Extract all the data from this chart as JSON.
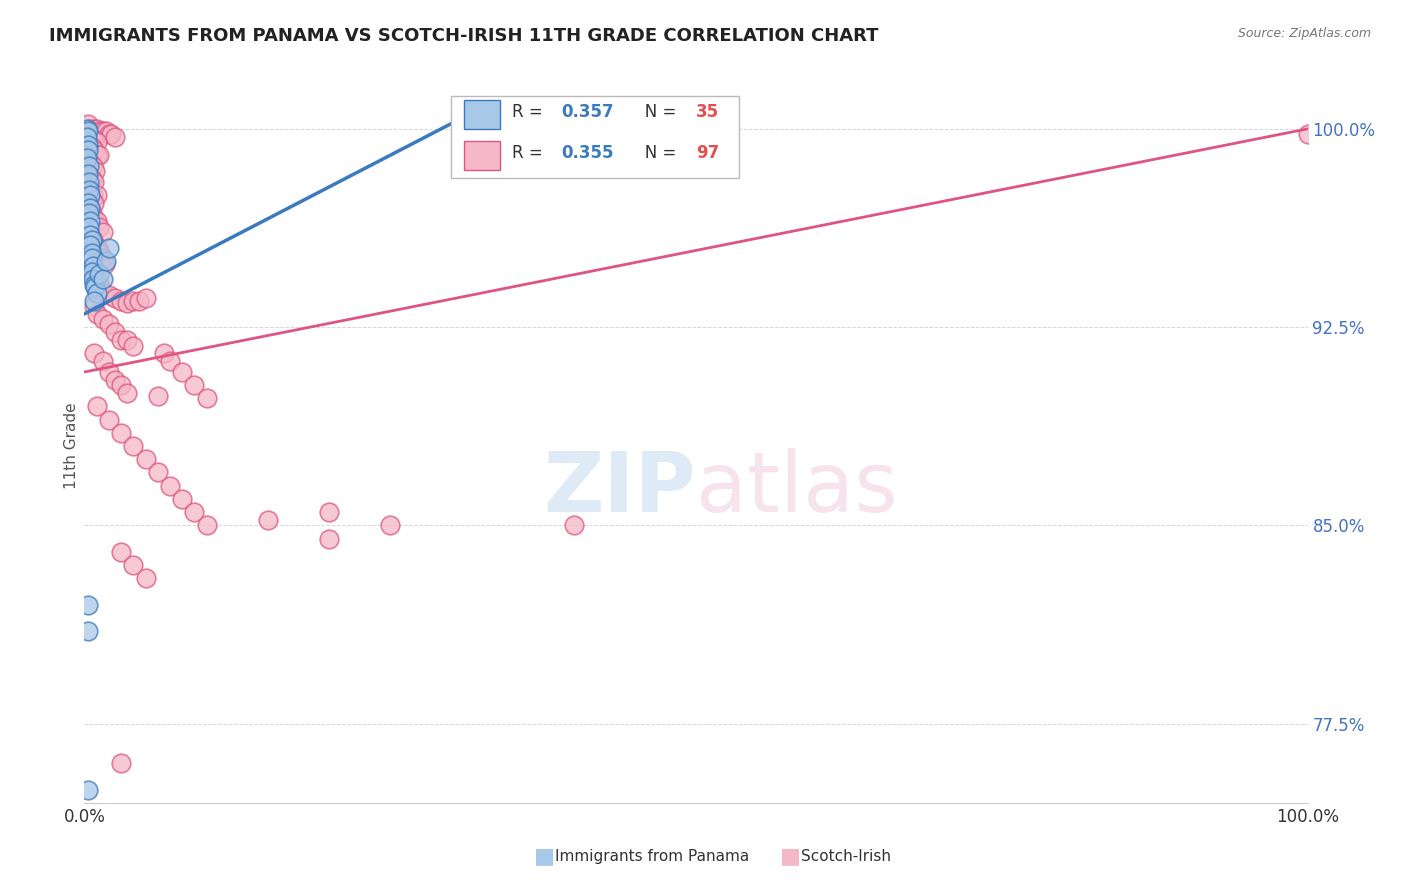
{
  "title": "IMMIGRANTS FROM PANAMA VS SCOTCH-IRISH 11TH GRADE CORRELATION CHART",
  "source": "Source: ZipAtlas.com",
  "ylabel": "11th Grade",
  "yticks": [
    0.775,
    0.85,
    0.925,
    1.0
  ],
  "ytick_labels": [
    "77.5%",
    "85.0%",
    "92.5%",
    "100.0%"
  ],
  "blue_color": "#a8c8e8",
  "pink_color": "#f4b8c8",
  "blue_line_color": "#3a7abf",
  "pink_line_color": "#e05580",
  "xmin": 0.0,
  "xmax": 1.0,
  "ymin": 0.745,
  "ymax": 1.015,
  "blue_scatter": [
    [
      0.002,
      1.0
    ],
    [
      0.003,
      0.999
    ],
    [
      0.002,
      0.997
    ],
    [
      0.003,
      0.994
    ],
    [
      0.003,
      0.992
    ],
    [
      0.002,
      0.989
    ],
    [
      0.004,
      0.986
    ],
    [
      0.003,
      0.983
    ],
    [
      0.004,
      0.98
    ],
    [
      0.004,
      0.977
    ],
    [
      0.005,
      0.975
    ],
    [
      0.003,
      0.972
    ],
    [
      0.005,
      0.97
    ],
    [
      0.004,
      0.968
    ],
    [
      0.005,
      0.965
    ],
    [
      0.004,
      0.963
    ],
    [
      0.005,
      0.96
    ],
    [
      0.006,
      0.958
    ],
    [
      0.005,
      0.956
    ],
    [
      0.006,
      0.953
    ],
    [
      0.006,
      0.951
    ],
    [
      0.007,
      0.948
    ],
    [
      0.006,
      0.946
    ],
    [
      0.007,
      0.943
    ],
    [
      0.008,
      0.941
    ],
    [
      0.009,
      0.94
    ],
    [
      0.01,
      0.938
    ],
    [
      0.008,
      0.935
    ],
    [
      0.012,
      0.945
    ],
    [
      0.015,
      0.943
    ],
    [
      0.018,
      0.95
    ],
    [
      0.02,
      0.955
    ],
    [
      0.003,
      0.82
    ],
    [
      0.003,
      0.81
    ],
    [
      0.003,
      0.75
    ]
  ],
  "pink_scatter": [
    [
      0.003,
      1.002
    ],
    [
      0.005,
      1.0
    ],
    [
      0.008,
      1.0
    ],
    [
      0.01,
      1.0
    ],
    [
      0.012,
      0.999
    ],
    [
      0.015,
      0.999
    ],
    [
      0.018,
      0.999
    ],
    [
      0.02,
      0.998
    ],
    [
      0.022,
      0.998
    ],
    [
      0.025,
      0.997
    ],
    [
      0.006,
      0.996
    ],
    [
      0.008,
      0.996
    ],
    [
      0.01,
      0.995
    ],
    [
      0.004,
      0.994
    ],
    [
      0.006,
      0.993
    ],
    [
      0.008,
      0.992
    ],
    [
      0.01,
      0.99
    ],
    [
      0.012,
      0.99
    ],
    [
      0.003,
      0.988
    ],
    [
      0.005,
      0.987
    ],
    [
      0.007,
      0.986
    ],
    [
      0.009,
      0.984
    ],
    [
      0.004,
      0.982
    ],
    [
      0.006,
      0.981
    ],
    [
      0.008,
      0.98
    ],
    [
      0.003,
      0.978
    ],
    [
      0.005,
      0.976
    ],
    [
      0.007,
      0.975
    ],
    [
      0.01,
      0.975
    ],
    [
      0.006,
      0.973
    ],
    [
      0.008,
      0.972
    ],
    [
      0.004,
      0.97
    ],
    [
      0.006,
      0.968
    ],
    [
      0.008,
      0.966
    ],
    [
      0.01,
      0.965
    ],
    [
      0.012,
      0.963
    ],
    [
      0.015,
      0.961
    ],
    [
      0.005,
      0.96
    ],
    [
      0.007,
      0.958
    ],
    [
      0.009,
      0.956
    ],
    [
      0.011,
      0.955
    ],
    [
      0.013,
      0.953
    ],
    [
      0.015,
      0.951
    ],
    [
      0.017,
      0.949
    ],
    [
      0.005,
      0.948
    ],
    [
      0.007,
      0.946
    ],
    [
      0.009,
      0.944
    ],
    [
      0.011,
      0.942
    ],
    [
      0.013,
      0.94
    ],
    [
      0.015,
      0.938
    ],
    [
      0.02,
      0.937
    ],
    [
      0.025,
      0.936
    ],
    [
      0.03,
      0.935
    ],
    [
      0.035,
      0.934
    ],
    [
      0.04,
      0.935
    ],
    [
      0.045,
      0.935
    ],
    [
      0.05,
      0.936
    ],
    [
      0.008,
      0.933
    ],
    [
      0.01,
      0.93
    ],
    [
      0.015,
      0.928
    ],
    [
      0.02,
      0.926
    ],
    [
      0.025,
      0.923
    ],
    [
      0.03,
      0.92
    ],
    [
      0.035,
      0.92
    ],
    [
      0.04,
      0.918
    ],
    [
      0.008,
      0.915
    ],
    [
      0.015,
      0.912
    ],
    [
      0.02,
      0.908
    ],
    [
      0.025,
      0.905
    ],
    [
      0.03,
      0.903
    ],
    [
      0.035,
      0.9
    ],
    [
      0.06,
      0.899
    ],
    [
      0.065,
      0.915
    ],
    [
      0.07,
      0.912
    ],
    [
      0.08,
      0.908
    ],
    [
      0.09,
      0.903
    ],
    [
      0.1,
      0.898
    ],
    [
      0.01,
      0.895
    ],
    [
      0.02,
      0.89
    ],
    [
      0.03,
      0.885
    ],
    [
      0.04,
      0.88
    ],
    [
      0.05,
      0.875
    ],
    [
      0.06,
      0.87
    ],
    [
      0.07,
      0.865
    ],
    [
      0.08,
      0.86
    ],
    [
      0.09,
      0.855
    ],
    [
      0.1,
      0.85
    ],
    [
      0.15,
      0.852
    ],
    [
      0.2,
      0.855
    ],
    [
      0.25,
      0.85
    ],
    [
      0.03,
      0.84
    ],
    [
      0.04,
      0.835
    ],
    [
      0.05,
      0.83
    ],
    [
      0.2,
      0.845
    ],
    [
      0.4,
      0.85
    ],
    [
      1.0,
      0.998
    ],
    [
      0.03,
      0.76
    ]
  ],
  "blue_trendline": [
    [
      0.0,
      0.93
    ],
    [
      0.3,
      1.002
    ]
  ],
  "pink_trendline": [
    [
      0.0,
      0.908
    ],
    [
      1.0,
      1.0
    ]
  ]
}
